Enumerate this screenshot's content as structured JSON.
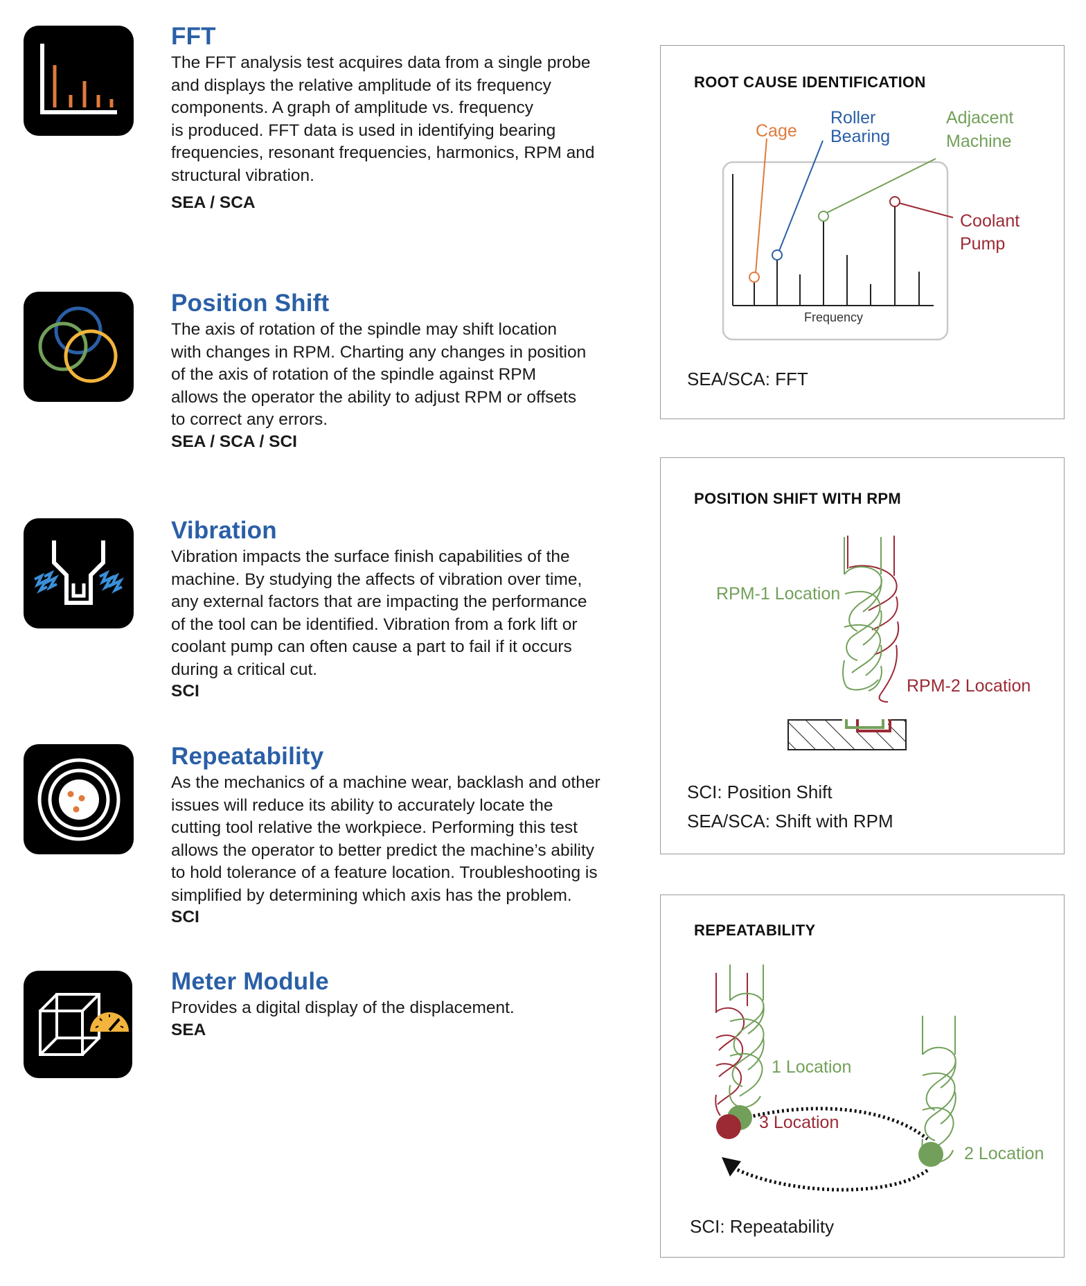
{
  "features": [
    {
      "title": "FFT",
      "lines": [
        "The FFT analysis test acquires data from a single probe",
        "and displays the relative amplitude of its frequency",
        "components. A graph of amplitude vs. frequency",
        "is produced. FFT data is used in identifying bearing",
        "frequencies, resonant frequencies, harmonics, RPM and",
        "structural vibration."
      ],
      "tag": "SEA / SCA",
      "icon": "bar-chart-icon"
    },
    {
      "title": "Position Shift",
      "lines": [
        "The axis of rotation of the spindle may shift location",
        "with changes in RPM. Charting any changes in position",
        "of the axis of rotation of the spindle against RPM",
        "allows the operator the ability to adjust RPM or offsets",
        "to correct any errors."
      ],
      "tag": "SEA / SCA / SCI",
      "icon": "overlapping-circles-icon"
    },
    {
      "title": "Vibration",
      "lines": [
        "Vibration impacts the surface finish capabilities of the",
        "machine. By studying the affects of vibration over time,",
        "any external factors that are impacting the performance",
        "of the tool can be identified. Vibration from a fork lift or",
        "coolant pump can often cause a part to fail if it occurs",
        "during a critical cut."
      ],
      "tag": "SCI",
      "icon": "vibration-icon"
    },
    {
      "title": "Repeatability",
      "lines": [
        "As the mechanics of a machine wear, backlash and other",
        "issues will reduce its ability to accurately locate the",
        "cutting tool relative the workpiece. Performing this test",
        "allows the operator to better predict the machine’s ability",
        "to hold tolerance of a feature location. Troubleshooting is",
        "simplified by determining which axis has the problem."
      ],
      "tag": "SCI",
      "icon": "target-icon"
    },
    {
      "title": "Meter Module",
      "lines": [
        "Provides a digital display of the displacement."
      ],
      "tag": "SEA",
      "icon": "cube-gauge-icon"
    }
  ],
  "panels": {
    "root_cause": {
      "title": "ROOT CAUSE IDENTIFICATION",
      "labels": {
        "cage": "Cage",
        "roller_1": "Roller",
        "roller_2": "Bearing",
        "adjacent_1": "Adjacent",
        "adjacent_2": "Machine",
        "coolant_1": "Coolant",
        "coolant_2": "Pump",
        "frequency": "Frequency"
      },
      "caption": "SEA/SCA: FFT"
    },
    "position_shift": {
      "title": "POSITION SHIFT WITH RPM",
      "rpm1_label": "RPM-1 Location",
      "rpm2_label": "RPM-2 Location",
      "caption_1": "SCI: Position Shift",
      "caption_2": "SEA/SCA: Shift with RPM"
    },
    "repeatability": {
      "title": "REPEATABILITY",
      "loc1_label": "1 Location",
      "loc2_label": "2 Location",
      "loc3_label": "3 Location",
      "caption": "SCI: Repeatability"
    }
  },
  "colors": {
    "heading_blue": "#2a5fa6",
    "orange": "#e07a3c",
    "blue": "#2a5fa6",
    "green": "#72a05a",
    "dark_red": "#9b2a35",
    "yellow": "#f2b43c"
  }
}
